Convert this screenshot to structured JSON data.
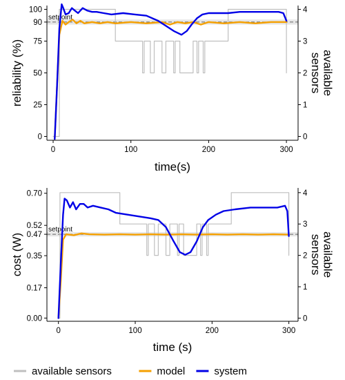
{
  "chart_data": [
    {
      "type": "line",
      "xlabel": "time(s)",
      "ylabel": "reliability (%)",
      "y2label": "available sensors",
      "xlim": [
        -8,
        315
      ],
      "ylim": [
        -3,
        103
      ],
      "y2lim": [
        -0.12,
        4.12
      ],
      "x_ticks": [
        0,
        100,
        200,
        300
      ],
      "y_ticks": [
        0,
        25,
        50,
        75,
        90,
        100
      ],
      "y2_ticks": [
        0,
        1,
        2,
        3,
        4
      ],
      "setpoint": {
        "label": "setpoint",
        "value": 90
      },
      "band": [
        88,
        92
      ],
      "series": [
        {
          "name": "available sensors",
          "axis": "right",
          "color": "#bfbfbf",
          "points": [
            [
              0,
              0
            ],
            [
              8,
              0
            ],
            [
              8,
              4
            ],
            [
              80,
              4
            ],
            [
              80,
              3
            ],
            [
              115,
              3
            ],
            [
              115,
              2
            ],
            [
              117,
              2
            ],
            [
              117,
              3
            ],
            [
              125,
              3
            ],
            [
              125,
              2
            ],
            [
              130,
              2
            ],
            [
              130,
              3
            ],
            [
              140,
              3
            ],
            [
              140,
              2
            ],
            [
              145,
              2
            ],
            [
              145,
              3
            ],
            [
              155,
              3
            ],
            [
              155,
              2
            ],
            [
              157,
              2
            ],
            [
              157,
              3
            ],
            [
              163,
              3
            ],
            [
              163,
              2
            ],
            [
              180,
              2
            ],
            [
              180,
              3
            ],
            [
              185,
              3
            ],
            [
              185,
              2
            ],
            [
              187,
              2
            ],
            [
              187,
              3
            ],
            [
              193,
              3
            ],
            [
              193,
              2
            ],
            [
              195,
              2
            ],
            [
              195,
              3
            ],
            [
              225,
              3
            ],
            [
              225,
              4
            ],
            [
              300,
              4
            ],
            [
              300,
              2
            ]
          ]
        },
        {
          "name": "model",
          "axis": "left",
          "color": "#f5a000",
          "points": [
            [
              2,
              -2
            ],
            [
              5,
              40
            ],
            [
              8,
              80
            ],
            [
              12,
              91
            ],
            [
              16,
              88
            ],
            [
              20,
              90
            ],
            [
              25,
              92
            ],
            [
              30,
              89
            ],
            [
              35,
              91
            ],
            [
              40,
              89
            ],
            [
              50,
              90
            ],
            [
              60,
              89
            ],
            [
              70,
              90
            ],
            [
              80,
              89
            ],
            [
              100,
              90
            ],
            [
              120,
              89
            ],
            [
              140,
              90
            ],
            [
              150,
              88
            ],
            [
              160,
              90
            ],
            [
              170,
              89
            ],
            [
              180,
              90
            ],
            [
              190,
              88
            ],
            [
              200,
              90
            ],
            [
              220,
              89
            ],
            [
              240,
              90
            ],
            [
              260,
              89
            ],
            [
              280,
              90
            ],
            [
              300,
              90
            ]
          ]
        },
        {
          "name": "system",
          "axis": "left",
          "color": "#0000e6",
          "points": [
            [
              2,
              -2
            ],
            [
              5,
              40
            ],
            [
              8,
              85
            ],
            [
              11,
              104
            ],
            [
              13,
              101
            ],
            [
              16,
              96
            ],
            [
              20,
              97
            ],
            [
              24,
              101
            ],
            [
              28,
              99
            ],
            [
              32,
              97
            ],
            [
              38,
              101
            ],
            [
              44,
              99
            ],
            [
              50,
              98
            ],
            [
              56,
              98
            ],
            [
              65,
              97
            ],
            [
              75,
              96
            ],
            [
              90,
              97
            ],
            [
              105,
              96
            ],
            [
              120,
              95
            ],
            [
              135,
              91
            ],
            [
              145,
              87
            ],
            [
              155,
              83
            ],
            [
              165,
              80
            ],
            [
              172,
              83
            ],
            [
              178,
              88
            ],
            [
              185,
              93
            ],
            [
              192,
              96
            ],
            [
              200,
              97
            ],
            [
              210,
              97
            ],
            [
              225,
              97
            ],
            [
              240,
              98
            ],
            [
              260,
              98
            ],
            [
              280,
              98
            ],
            [
              290,
              98
            ],
            [
              296,
              97
            ],
            [
              300,
              91
            ]
          ]
        }
      ]
    },
    {
      "type": "line",
      "xlabel": "time (s)",
      "ylabel": "cost (W)",
      "y2label": "available sensors",
      "xlim": [
        -15,
        312
      ],
      "ylim": [
        -0.018,
        0.73
      ],
      "y2lim": [
        -0.1,
        4.15
      ],
      "x_ticks": [
        0,
        100,
        200,
        300
      ],
      "y_ticks": [
        0.0,
        0.17,
        0.35,
        0.47,
        0.52,
        0.7
      ],
      "y_tick_labels": [
        "0.00",
        "0.17",
        "0.35",
        "0.47",
        "0.52",
        "0.70"
      ],
      "y2_ticks": [
        0,
        1,
        2,
        3,
        4
      ],
      "setpoint": {
        "label": "setpoint",
        "value": 0.47
      },
      "band": [
        0.458,
        0.482
      ],
      "series": [
        {
          "name": "available sensors",
          "axis": "right",
          "color": "#bfbfbf",
          "points": [
            [
              0,
              0
            ],
            [
              2,
              0
            ],
            [
              2,
              4
            ],
            [
              80,
              4
            ],
            [
              80,
              3
            ],
            [
              115,
              3
            ],
            [
              115,
              2
            ],
            [
              117,
              2
            ],
            [
              117,
              3
            ],
            [
              125,
              3
            ],
            [
              125,
              2
            ],
            [
              130,
              2
            ],
            [
              130,
              3
            ],
            [
              140,
              3
            ],
            [
              140,
              2
            ],
            [
              145,
              2
            ],
            [
              145,
              3
            ],
            [
              155,
              3
            ],
            [
              155,
              2
            ],
            [
              157,
              2
            ],
            [
              157,
              3
            ],
            [
              163,
              3
            ],
            [
              163,
              2
            ],
            [
              180,
              2
            ],
            [
              180,
              3
            ],
            [
              185,
              3
            ],
            [
              185,
              2
            ],
            [
              187,
              2
            ],
            [
              187,
              3
            ],
            [
              193,
              3
            ],
            [
              193,
              2
            ],
            [
              195,
              2
            ],
            [
              195,
              3
            ],
            [
              225,
              3
            ],
            [
              225,
              4
            ],
            [
              300,
              4
            ],
            [
              300,
              2
            ]
          ]
        },
        {
          "name": "model",
          "axis": "left",
          "color": "#f5a000",
          "points": [
            [
              0,
              0.0
            ],
            [
              3,
              0.2
            ],
            [
              6,
              0.44
            ],
            [
              10,
              0.47
            ],
            [
              20,
              0.465
            ],
            [
              30,
              0.475
            ],
            [
              40,
              0.47
            ],
            [
              60,
              0.468
            ],
            [
              80,
              0.47
            ],
            [
              100,
              0.468
            ],
            [
              120,
              0.47
            ],
            [
              140,
              0.468
            ],
            [
              160,
              0.47
            ],
            [
              180,
              0.468
            ],
            [
              200,
              0.47
            ],
            [
              220,
              0.468
            ],
            [
              240,
              0.47
            ],
            [
              260,
              0.468
            ],
            [
              280,
              0.47
            ],
            [
              300,
              0.468
            ]
          ]
        },
        {
          "name": "system",
          "axis": "left",
          "color": "#0000e6",
          "points": [
            [
              0,
              0.0
            ],
            [
              3,
              0.3
            ],
            [
              6,
              0.58
            ],
            [
              8,
              0.67
            ],
            [
              11,
              0.66
            ],
            [
              15,
              0.62
            ],
            [
              19,
              0.65
            ],
            [
              23,
              0.61
            ],
            [
              28,
              0.64
            ],
            [
              33,
              0.64
            ],
            [
              38,
              0.62
            ],
            [
              45,
              0.63
            ],
            [
              55,
              0.62
            ],
            [
              65,
              0.61
            ],
            [
              75,
              0.59
            ],
            [
              90,
              0.58
            ],
            [
              105,
              0.57
            ],
            [
              120,
              0.56
            ],
            [
              130,
              0.55
            ],
            [
              140,
              0.51
            ],
            [
              150,
              0.43
            ],
            [
              158,
              0.37
            ],
            [
              165,
              0.355
            ],
            [
              172,
              0.37
            ],
            [
              180,
              0.43
            ],
            [
              188,
              0.51
            ],
            [
              195,
              0.55
            ],
            [
              205,
              0.58
            ],
            [
              215,
              0.6
            ],
            [
              230,
              0.61
            ],
            [
              250,
              0.62
            ],
            [
              270,
              0.62
            ],
            [
              285,
              0.62
            ],
            [
              295,
              0.63
            ],
            [
              298,
              0.6
            ],
            [
              300,
              0.46
            ]
          ]
        }
      ]
    }
  ],
  "legend": {
    "items": [
      {
        "name": "available sensors",
        "color": "#bfbfbf"
      },
      {
        "name": "model",
        "color": "#f5a000"
      },
      {
        "name": "system",
        "color": "#0000e6"
      }
    ]
  }
}
